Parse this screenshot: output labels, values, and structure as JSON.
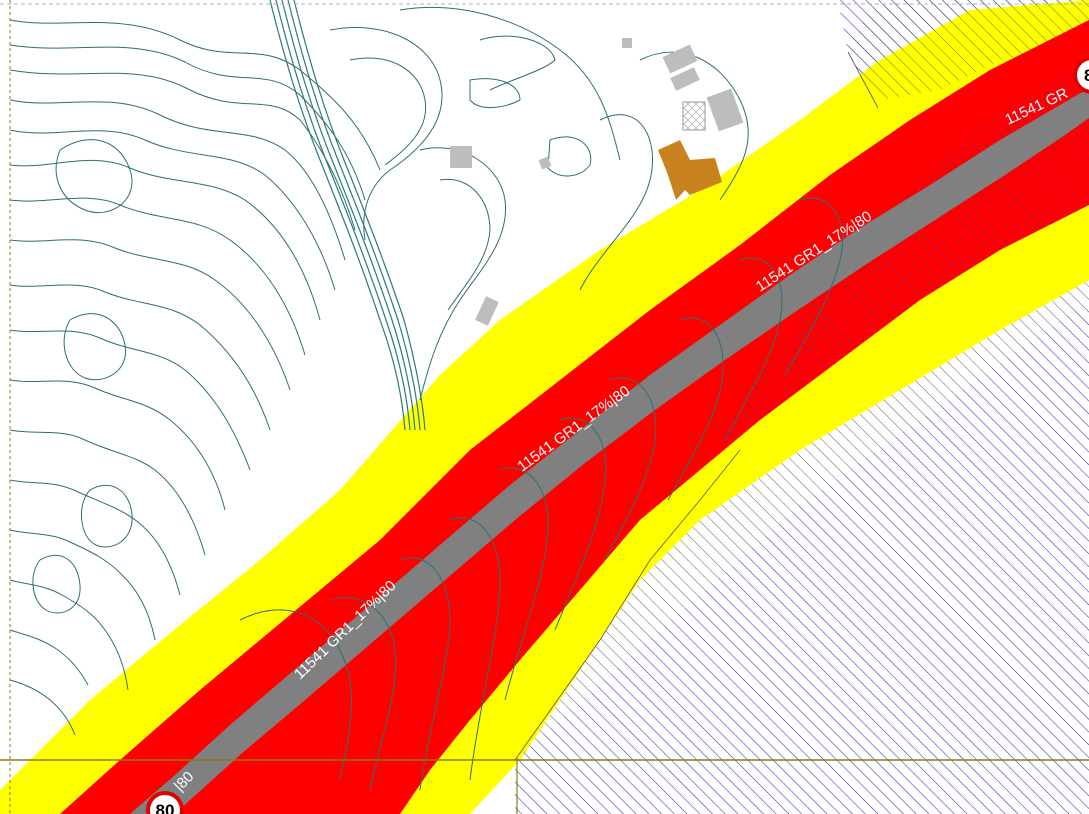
{
  "map": {
    "road": {
      "labels": [
        "11541 GR1_17%|80",
        "11541 GR1_17%|80",
        "11541 GR1_17%|80",
        "11541 GR",
        "|80"
      ],
      "speed_limits": [
        "80",
        "8"
      ]
    },
    "colors": {
      "road": "#808080",
      "buffer_inner": "#ff0000",
      "buffer_outer": "#ffff00",
      "contour": "#2f6f6f",
      "steep_contour": "#2a7a7a",
      "hatch_blue": "#2d2dbf",
      "hatch_dark": "#3a3a3a",
      "building_grey": "#bdbdbd",
      "building_highlight": "#c8821e",
      "grid_line": "#8b7a10",
      "speed_sign_border": "#e00000"
    }
  }
}
